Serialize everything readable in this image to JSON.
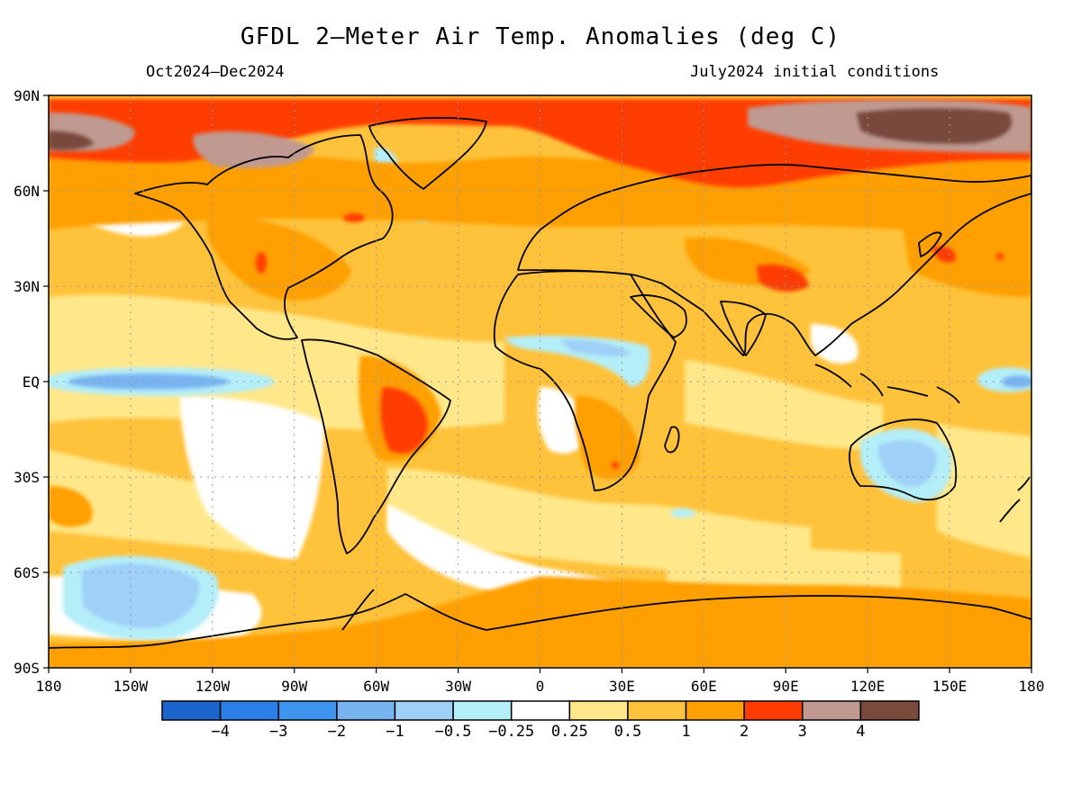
{
  "header": {
    "title": "GFDL 2—Meter Air Temp. Anomalies (deg C)",
    "period": "Oct2024—Dec2024",
    "initial_conditions": "July2024 initial conditions"
  },
  "axes": {
    "lon_labels": [
      "180",
      "150W",
      "120W",
      "90W",
      "60W",
      "30W",
      "0",
      "30E",
      "60E",
      "90E",
      "120E",
      "150E",
      "180"
    ],
    "lat_labels": [
      "90N",
      "60N",
      "30N",
      "EQ",
      "30S",
      "60S",
      "90S"
    ],
    "grid": "dotted"
  },
  "colorbar": {
    "labels": [
      "−4",
      "−3",
      "−2",
      "−1",
      "−0.5",
      "−0.25",
      "0.25",
      "0.5",
      "1",
      "2",
      "3",
      "4"
    ],
    "colors": [
      "#1a66cc",
      "#2a80e8",
      "#3d95f0",
      "#78b4f2",
      "#9fd0f8",
      "#b4eef8",
      "#ffffff",
      "#ffe78a",
      "#ffc23a",
      "#ff9f00",
      "#ff3c00",
      "#c09a90",
      "#7a4a3c"
    ]
  },
  "legend_colors": {
    "neutral": "#ffffff",
    "warm_light": "#ffe78a",
    "warm": "#ffc23a",
    "warm_strong": "#ff9f00",
    "hot": "#ff3c00",
    "very_hot": "#c09a90",
    "extreme_hot": "#7a4a3c",
    "cool_light": "#b4eef8",
    "cool": "#9fd0f8",
    "cold": "#78b4f2"
  }
}
